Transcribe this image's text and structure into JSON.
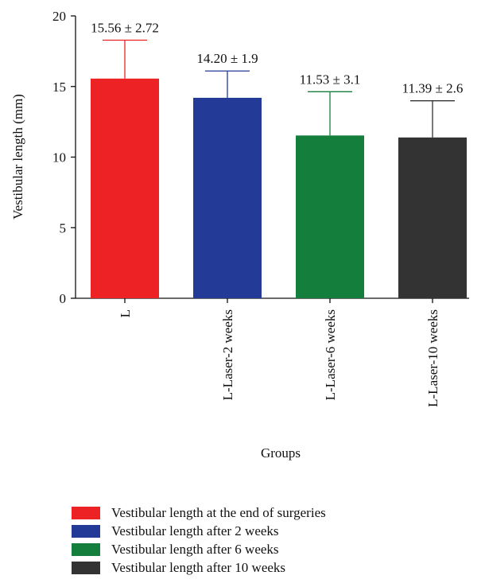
{
  "chart_data": {
    "type": "bar",
    "xlabel": "Groups",
    "ylabel": "Vestibular length (mm)",
    "ylim": [
      0,
      20
    ],
    "yticks": [
      0,
      5,
      10,
      15,
      20
    ],
    "categories": [
      "L",
      "L-Laser-2 weeks",
      "L-Laser-6 weeks",
      "L-Laser-10 weeks"
    ],
    "values": [
      15.56,
      14.2,
      11.53,
      11.39
    ],
    "errors": [
      2.72,
      1.9,
      3.1,
      2.6
    ],
    "value_labels": [
      "15.56 ± 2.72",
      "14.20 ± 1.9",
      "11.53 ± 3.1",
      "11.39 ± 2.6"
    ],
    "colors": [
      "#ed2224",
      "#233a96",
      "#147f3c",
      "#333333"
    ],
    "legend": [
      {
        "label": "Vestibular length at the end of surgeries",
        "color": "#ed2224"
      },
      {
        "label": "Vestibular length after 2 weeks",
        "color": "#233a96"
      },
      {
        "label": "Vestibular length after 6 weeks",
        "color": "#147f3c"
      },
      {
        "label": "Vestibular length after 10 weeks",
        "color": "#333333"
      }
    ],
    "legend_position": "bottom",
    "grid": false
  }
}
